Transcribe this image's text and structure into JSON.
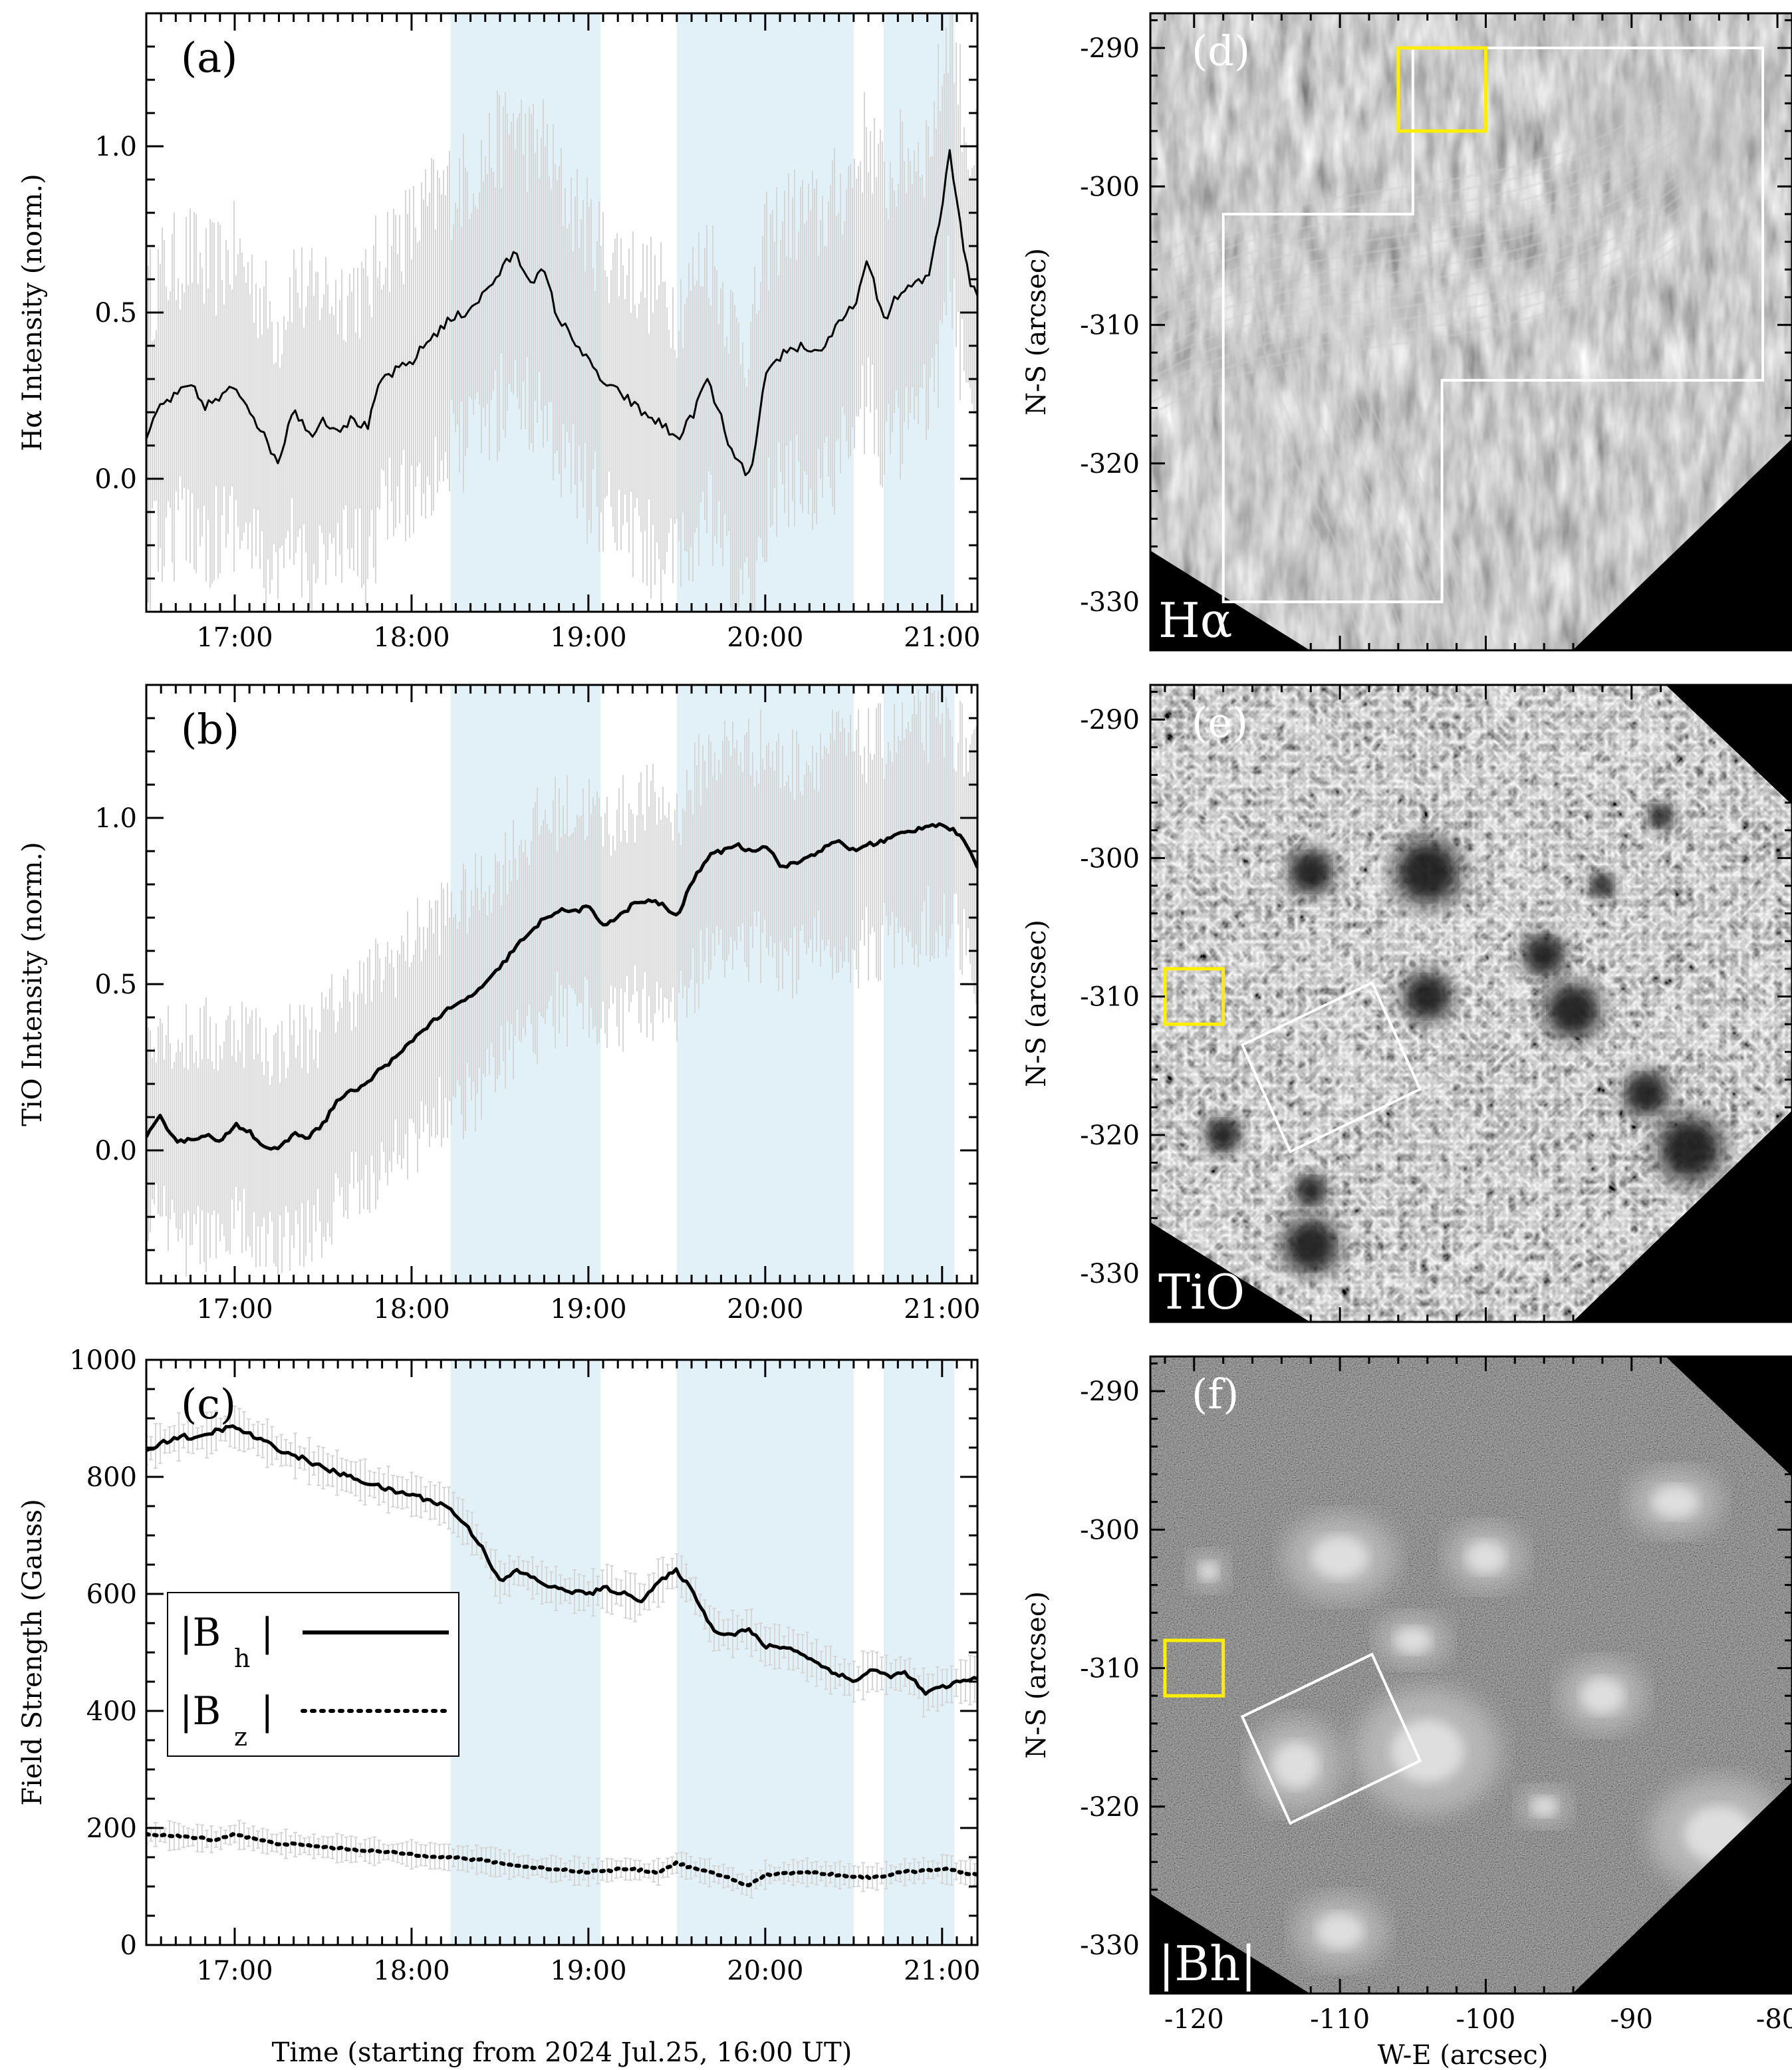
{
  "colors": {
    "shade": "#e2f0f7",
    "errorbar": "#d6d6d6",
    "line": "#000000",
    "box_white": "#ffffff",
    "box_yellow": "#ffee00"
  },
  "time_axis": {
    "xlabel": "Time (starting from 2024 Jul.25, 16:00 UT)",
    "ticks": [
      {
        "t": 17.0,
        "label": "17:00"
      },
      {
        "t": 18.0,
        "label": "18:00"
      },
      {
        "t": 19.0,
        "label": "19:00"
      },
      {
        "t": 20.0,
        "label": "20:00"
      },
      {
        "t": 21.0,
        "label": "21:00"
      }
    ],
    "xlim_hours": [
      16.5,
      21.2
    ],
    "shaded_intervals_hours": [
      [
        18.22,
        19.07
      ],
      [
        19.5,
        20.5
      ],
      [
        20.67,
        21.07
      ]
    ]
  },
  "chart_data": [
    {
      "type": "line",
      "panel": "(a)",
      "ylabel": "Hα Intensity (norm.)",
      "ylim": [
        -0.4,
        1.4
      ],
      "yticks": [
        {
          "v": 0.0,
          "label": "0.0"
        },
        {
          "v": 0.5,
          "label": "0.5"
        },
        {
          "v": 1.0,
          "label": "1.0"
        }
      ],
      "error_halfwidth": 0.4,
      "series": [
        {
          "x": [
            16.5,
            16.58,
            16.67,
            16.75,
            16.83,
            16.92,
            17.0,
            17.1,
            17.17,
            17.25,
            17.33,
            17.42,
            17.5,
            17.58,
            17.67,
            17.75,
            17.83,
            17.9,
            18.0,
            18.1,
            18.2,
            18.3,
            18.4,
            18.5,
            18.58,
            18.67,
            18.75,
            18.83,
            18.92,
            19.0,
            19.1,
            19.2,
            19.3,
            19.4,
            19.5,
            19.58,
            19.67,
            19.75,
            19.83,
            19.92,
            20.0,
            20.1,
            20.2,
            20.3,
            20.4,
            20.5,
            20.58,
            20.67,
            20.75,
            20.83,
            20.92,
            21.0,
            21.04,
            21.1,
            21.15,
            21.2
          ],
          "y": [
            0.12,
            0.22,
            0.25,
            0.28,
            0.22,
            0.24,
            0.28,
            0.2,
            0.12,
            0.05,
            0.22,
            0.13,
            0.18,
            0.15,
            0.18,
            0.15,
            0.3,
            0.32,
            0.35,
            0.42,
            0.47,
            0.5,
            0.55,
            0.62,
            0.68,
            0.6,
            0.62,
            0.48,
            0.42,
            0.35,
            0.28,
            0.25,
            0.2,
            0.17,
            0.12,
            0.18,
            0.3,
            0.18,
            0.05,
            0.01,
            0.3,
            0.38,
            0.4,
            0.38,
            0.45,
            0.52,
            0.65,
            0.48,
            0.55,
            0.58,
            0.6,
            0.82,
            1.0,
            0.78,
            0.6,
            0.55
          ]
        }
      ]
    },
    {
      "type": "line",
      "panel": "(b)",
      "ylabel": "TiO Intensity (norm.)",
      "ylim": [
        -0.4,
        1.4
      ],
      "yticks": [
        {
          "v": 0.0,
          "label": "0.0"
        },
        {
          "v": 0.5,
          "label": "0.5"
        },
        {
          "v": 1.0,
          "label": "1.0"
        }
      ],
      "error_halfwidth": 0.3,
      "series": [
        {
          "x": [
            16.5,
            16.58,
            16.67,
            16.75,
            16.83,
            16.92,
            17.0,
            17.08,
            17.17,
            17.25,
            17.33,
            17.42,
            17.5,
            17.58,
            17.67,
            17.75,
            17.83,
            17.92,
            18.0,
            18.1,
            18.2,
            18.3,
            18.42,
            18.5,
            18.6,
            18.67,
            18.75,
            18.83,
            18.92,
            19.0,
            19.08,
            19.17,
            19.25,
            19.33,
            19.42,
            19.5,
            19.58,
            19.67,
            19.75,
            19.83,
            19.92,
            20.0,
            20.1,
            20.2,
            20.3,
            20.42,
            20.5,
            20.58,
            20.67,
            20.75,
            20.83,
            20.92,
            21.0,
            21.1,
            21.2
          ],
          "y": [
            0.04,
            0.1,
            0.03,
            0.03,
            0.05,
            0.02,
            0.08,
            0.06,
            0.01,
            0.0,
            0.05,
            0.04,
            0.08,
            0.15,
            0.18,
            0.2,
            0.25,
            0.28,
            0.33,
            0.38,
            0.42,
            0.45,
            0.5,
            0.55,
            0.62,
            0.65,
            0.7,
            0.72,
            0.72,
            0.73,
            0.68,
            0.7,
            0.74,
            0.75,
            0.74,
            0.7,
            0.8,
            0.88,
            0.9,
            0.92,
            0.9,
            0.92,
            0.85,
            0.87,
            0.9,
            0.93,
            0.9,
            0.92,
            0.93,
            0.95,
            0.96,
            0.98,
            0.98,
            0.95,
            0.85
          ]
        }
      ]
    },
    {
      "type": "line",
      "panel": "(c)",
      "ylabel": "Field Strength (Gauss)",
      "ylim": [
        0,
        1000
      ],
      "yticks": [
        {
          "v": 0,
          "label": "0"
        },
        {
          "v": 200,
          "label": "200"
        },
        {
          "v": 400,
          "label": "400"
        },
        {
          "v": 600,
          "label": "600"
        },
        {
          "v": 800,
          "label": "800"
        },
        {
          "v": 1000,
          "label": "1000"
        }
      ],
      "series": [
        {
          "name": "|B_h|",
          "style": "solid",
          "error_halfwidth": 30,
          "x": [
            16.5,
            16.6,
            16.7,
            16.8,
            16.9,
            17.0,
            17.1,
            17.2,
            17.3,
            17.4,
            17.5,
            17.6,
            17.7,
            17.8,
            17.9,
            18.0,
            18.1,
            18.2,
            18.3,
            18.4,
            18.5,
            18.6,
            18.7,
            18.8,
            18.9,
            19.0,
            19.1,
            19.2,
            19.3,
            19.4,
            19.5,
            19.6,
            19.7,
            19.8,
            19.9,
            20.0,
            20.1,
            20.2,
            20.3,
            20.4,
            20.5,
            20.6,
            20.7,
            20.8,
            20.9,
            21.0,
            21.1,
            21.2
          ],
          "y": [
            845,
            860,
            870,
            865,
            880,
            885,
            870,
            855,
            840,
            830,
            815,
            805,
            795,
            785,
            775,
            770,
            760,
            750,
            720,
            680,
            620,
            640,
            625,
            610,
            605,
            600,
            610,
            600,
            590,
            620,
            640,
            600,
            540,
            530,
            540,
            510,
            510,
            500,
            480,
            465,
            450,
            470,
            460,
            465,
            430,
            440,
            450,
            455
          ]
        },
        {
          "name": "|B_z|",
          "style": "dotted",
          "error_halfwidth": 18,
          "x": [
            16.5,
            16.7,
            16.9,
            17.0,
            17.2,
            17.4,
            17.6,
            17.8,
            18.0,
            18.2,
            18.4,
            18.6,
            18.8,
            19.0,
            19.2,
            19.4,
            19.5,
            19.6,
            19.8,
            19.9,
            20.0,
            20.2,
            20.4,
            20.6,
            20.8,
            21.0,
            21.2
          ],
          "y": [
            190,
            185,
            180,
            190,
            175,
            170,
            165,
            160,
            155,
            150,
            145,
            135,
            130,
            125,
            130,
            125,
            140,
            130,
            115,
            100,
            120,
            125,
            120,
            115,
            125,
            130,
            120
          ]
        }
      ],
      "legend": {
        "placement": "left",
        "items": [
          {
            "main": "|B",
            "sub": "h",
            "tail": "|",
            "style": "solid"
          },
          {
            "main": "|B",
            "sub": "z",
            "tail": "|",
            "style": "dotted"
          }
        ]
      }
    }
  ],
  "image_panels": {
    "xlabel": "W-E (arcsec)",
    "ylabel": "N-S (arcsec)",
    "x_ticks": [
      {
        "v": -120,
        "label": "-120"
      },
      {
        "v": -110,
        "label": "-110"
      },
      {
        "v": -100,
        "label": "-100"
      },
      {
        "v": -90,
        "label": "-90"
      },
      {
        "v": -80,
        "label": "-80"
      }
    ],
    "y_ticks": [
      {
        "v": -290,
        "label": "-290"
      },
      {
        "v": -300,
        "label": "-300"
      },
      {
        "v": -310,
        "label": "-310"
      },
      {
        "v": -320,
        "label": "-320"
      },
      {
        "v": -330,
        "label": "-330"
      }
    ],
    "xlim": [
      -123,
      -79
    ],
    "ylim": [
      -333.5,
      -287.5
    ],
    "panels": [
      {
        "panel": "(d)",
        "label": "Hα",
        "white_box": [
          [
            -118,
            -330
          ],
          [
            -118,
            -302
          ],
          [
            -105,
            -302
          ],
          [
            -105,
            -290
          ],
          [
            -81,
            -290
          ],
          [
            -81,
            -314
          ],
          [
            -103,
            -314
          ],
          [
            -103,
            -330
          ]
        ],
        "yellow_box": [
          [
            -106,
            -290
          ],
          [
            -100,
            -296
          ]
        ]
      },
      {
        "panel": "(e)",
        "label": "TiO",
        "white_box": [
          [
            -116.7,
            -313.5
          ],
          [
            -107.8,
            -309.0
          ],
          [
            -104.5,
            -316.7
          ],
          [
            -113.4,
            -321.2
          ]
        ],
        "yellow_box": [
          [
            -122,
            -308
          ],
          [
            -118,
            -312
          ]
        ]
      },
      {
        "panel": "(f)",
        "label": "|Bh|",
        "white_box": [
          [
            -116.7,
            -313.5
          ],
          [
            -107.8,
            -309.0
          ],
          [
            -104.5,
            -316.7
          ],
          [
            -113.4,
            -321.2
          ]
        ],
        "yellow_box": [
          [
            -122,
            -308
          ],
          [
            -118,
            -312
          ]
        ]
      }
    ]
  }
}
